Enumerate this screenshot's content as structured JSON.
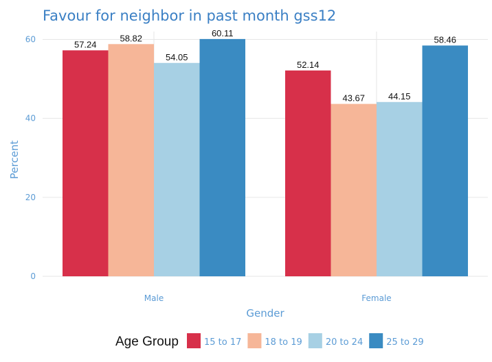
{
  "chart_data": {
    "type": "bar",
    "title": "Favour for neighbor in past month gss12",
    "xlabel": "Gender",
    "ylabel": "Percent",
    "ylim": [
      0,
      62
    ],
    "yticks": [
      0,
      20,
      40,
      60
    ],
    "categories": [
      "Male",
      "Female"
    ],
    "legend_title": "Age Group",
    "legend_position": "bottom",
    "grid": true,
    "series": [
      {
        "name": "15 to 17",
        "color": "#d7304a",
        "values": [
          57.24,
          52.14
        ],
        "labels": [
          "57.24",
          "52.14"
        ]
      },
      {
        "name": "18 to 19",
        "color": "#f6b698",
        "values": [
          58.82,
          43.67
        ],
        "labels": [
          "58.82",
          "43.67"
        ]
      },
      {
        "name": "20 to 24",
        "color": "#a7d0e4",
        "values": [
          54.05,
          44.15
        ],
        "labels": [
          "54.05",
          "44.15"
        ]
      },
      {
        "name": "25 to 29",
        "color": "#3a8bc2",
        "values": [
          60.11,
          58.46
        ],
        "labels": [
          "60.11",
          "58.46"
        ]
      }
    ]
  }
}
